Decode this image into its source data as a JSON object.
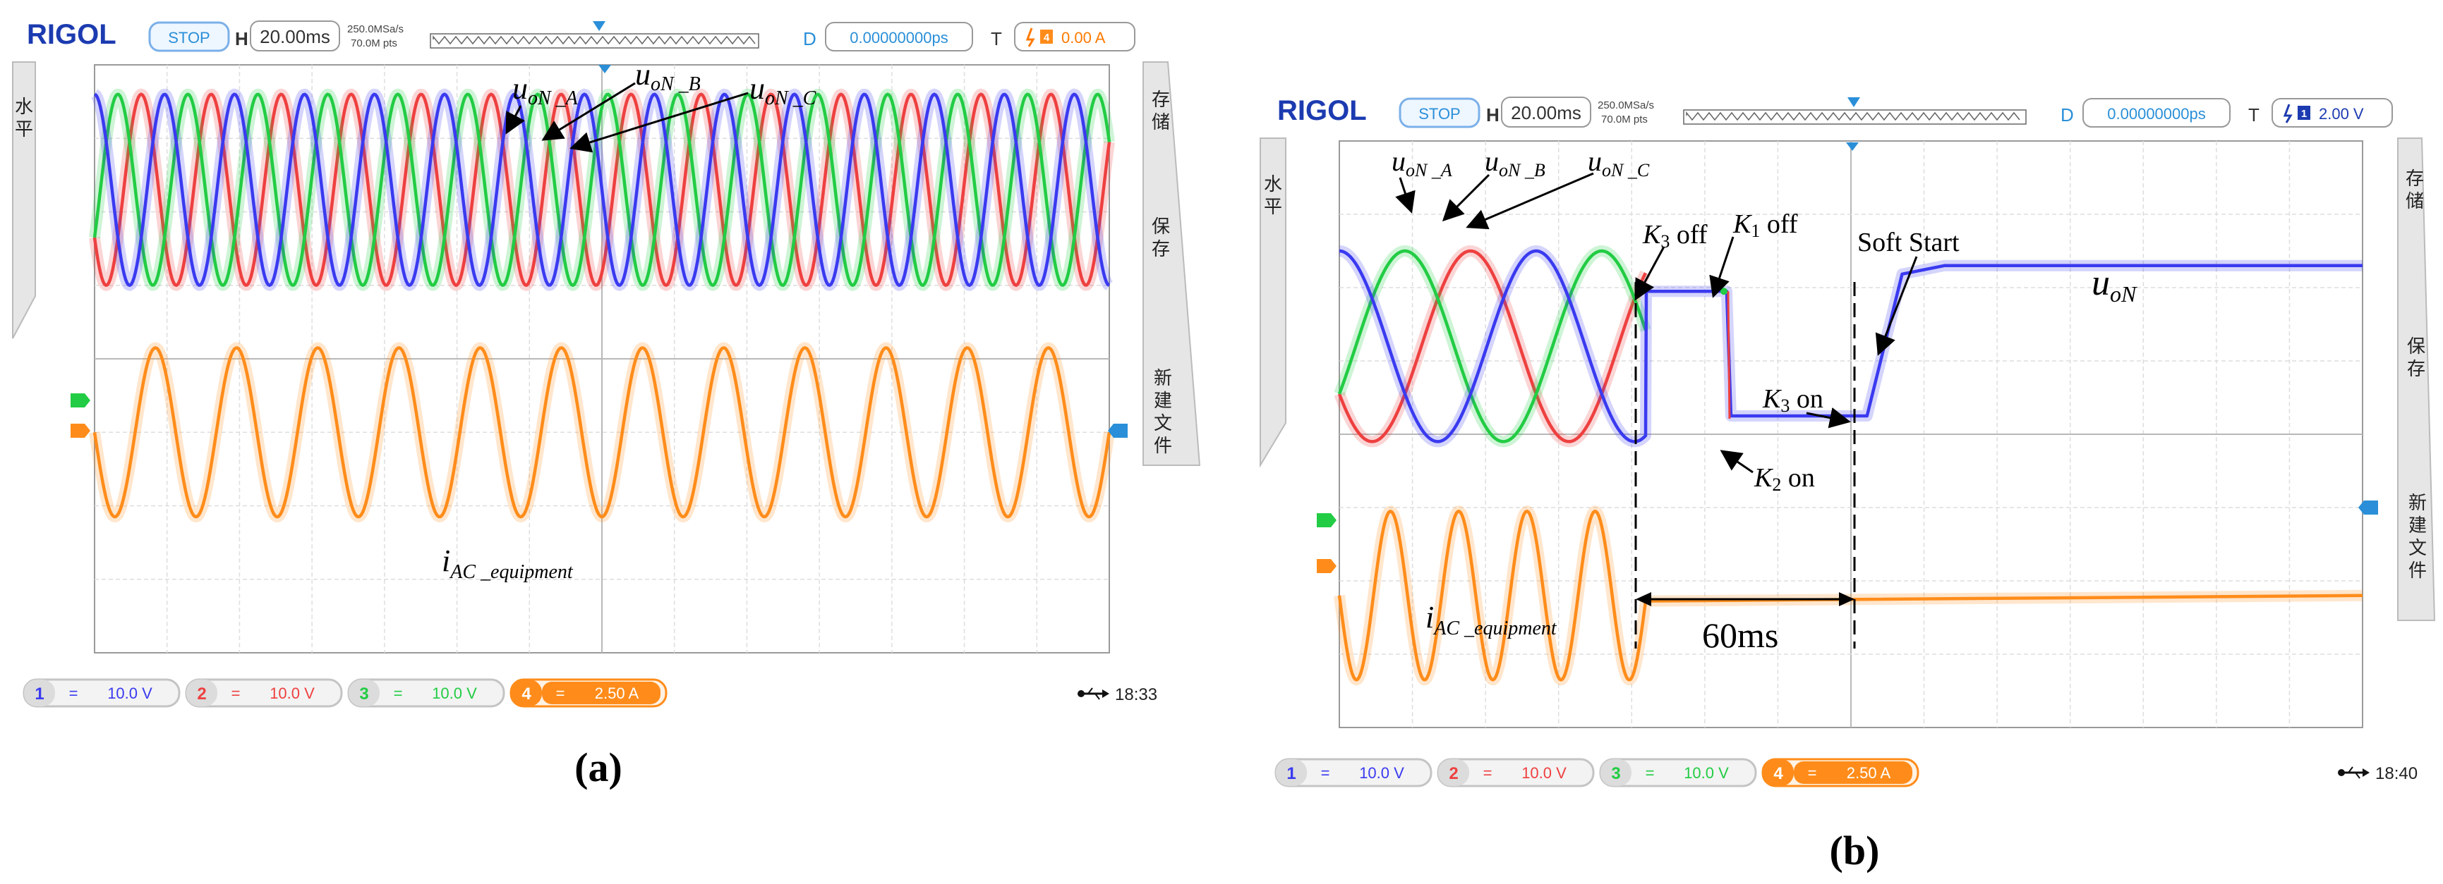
{
  "panels": [
    {
      "id": "a",
      "caption": "(a)",
      "header": {
        "brand": "RIGOL",
        "run_state": "STOP",
        "h_label": "H",
        "timebase": "20.00ms",
        "sample_rate": "250.0MSa/s",
        "memory_depth": "70.0M pts",
        "delay_label": "D",
        "delay_value": "0.00000000ps",
        "trigger_label": "T",
        "trigger_channel": "4",
        "trigger_level": "0.00 A"
      },
      "side_left": [
        "水",
        "平"
      ],
      "side_right": [
        "存",
        "储",
        "保",
        "存",
        "新",
        "建",
        "文",
        "件"
      ],
      "channels": [
        {
          "num": "1",
          "value": "10.0 V",
          "color": "#3a3af0"
        },
        {
          "num": "2",
          "value": "10.0 V",
          "color": "#ee4040"
        },
        {
          "num": "3",
          "value": "10.0 V",
          "color": "#22cc44"
        },
        {
          "num": "4",
          "value": "2.50 A",
          "color": "#ff8c1a"
        }
      ],
      "time": "18:33",
      "annotations": {
        "uA": {
          "main": "u",
          "sub": "oN _A"
        },
        "uB": {
          "main": "u",
          "sub": "oN _B"
        },
        "uC": {
          "main": "u",
          "sub": "oN _C"
        },
        "iac": {
          "main": "i",
          "sub": "AC _equipment"
        }
      },
      "chart_data": {
        "type": "line",
        "x_unit": "div",
        "xlim": [
          0,
          14
        ],
        "ylim": [
          -4,
          4
        ],
        "grid": true,
        "series": [
          {
            "channel": "1",
            "waveform": "sine",
            "cycles": 14.5,
            "offset_div": 2.3,
            "amplitude_div": 1.3,
            "phase_deg": 90
          },
          {
            "channel": "2",
            "waveform": "sine",
            "cycles": 14.5,
            "offset_div": 2.3,
            "amplitude_div": 1.3,
            "phase_deg": 210
          },
          {
            "channel": "3",
            "waveform": "sine",
            "cycles": 14.5,
            "offset_div": 2.3,
            "amplitude_div": 1.3,
            "phase_deg": 330
          },
          {
            "channel": "4",
            "waveform": "sine",
            "cycles": 12.5,
            "offset_div": -1.0,
            "amplitude_div": 1.15,
            "phase_deg": 180
          }
        ]
      }
    },
    {
      "id": "b",
      "caption": "(b)",
      "header": {
        "brand": "RIGOL",
        "run_state": "STOP",
        "h_label": "H",
        "timebase": "20.00ms",
        "sample_rate": "250.0MSa/s",
        "memory_depth": "70.0M pts",
        "delay_label": "D",
        "delay_value": "0.00000000ps",
        "trigger_label": "T",
        "trigger_channel": "1",
        "trigger_level": "2.00 V"
      },
      "side_left": [
        "水",
        "平"
      ],
      "side_right": [
        "存",
        "储",
        "保",
        "存",
        "新",
        "建",
        "文",
        "件"
      ],
      "channels": [
        {
          "num": "1",
          "value": "10.0 V",
          "color": "#3a3af0"
        },
        {
          "num": "2",
          "value": "10.0 V",
          "color": "#ee4040"
        },
        {
          "num": "3",
          "value": "10.0 V",
          "color": "#22cc44"
        },
        {
          "num": "4",
          "value": "2.50 A",
          "color": "#ff8c1a"
        }
      ],
      "time": "18:40",
      "annotations": {
        "uA": {
          "main": "u",
          "sub": "oN _A"
        },
        "uB": {
          "main": "u",
          "sub": "oN _B"
        },
        "uC": {
          "main": "u",
          "sub": "oN _C"
        },
        "k3off": {
          "main": "K",
          "sub": "3",
          "tail": " off"
        },
        "k1off": {
          "main": "K",
          "sub": "1",
          "tail": " off"
        },
        "soft": "Soft Start",
        "uoN": {
          "main": "u",
          "sub": "oN"
        },
        "k3on": {
          "main": "K",
          "sub": "3",
          "tail": " on"
        },
        "k2on": {
          "main": "K",
          "sub": "2",
          "tail": " on"
        },
        "iac": {
          "main": "i",
          "sub": "AC _equipment"
        },
        "interval": "60ms"
      },
      "chart_data": {
        "type": "line",
        "x_unit": "div",
        "xlim": [
          0,
          14
        ],
        "ylim": [
          -4,
          4
        ],
        "grid": true,
        "series": [
          {
            "channel": "1",
            "segments": "sine 0-4.2 div; flat 4.2-5.3 div; flat 5.3-7.2 div; ramp 7.2-7.7 div; flat 7.7-14 div"
          },
          {
            "channel": "2",
            "waveform": "sine",
            "cycles": 5.2,
            "x_end_div": 4.2,
            "offset_div": 1.2,
            "amplitude_div": 1.3,
            "phase_deg": 210
          },
          {
            "channel": "3",
            "waveform": "sine",
            "cycles": 5.2,
            "x_end_div": 4.2,
            "offset_div": 1.2,
            "amplitude_div": 1.3,
            "phase_deg": 330
          },
          {
            "channel": "4",
            "waveform": "sine",
            "cycles": 4.5,
            "x_end_div": 4.2,
            "offset_div": -2.2,
            "amplitude_div": 1.15,
            "phase_deg": 180
          }
        ]
      }
    }
  ]
}
